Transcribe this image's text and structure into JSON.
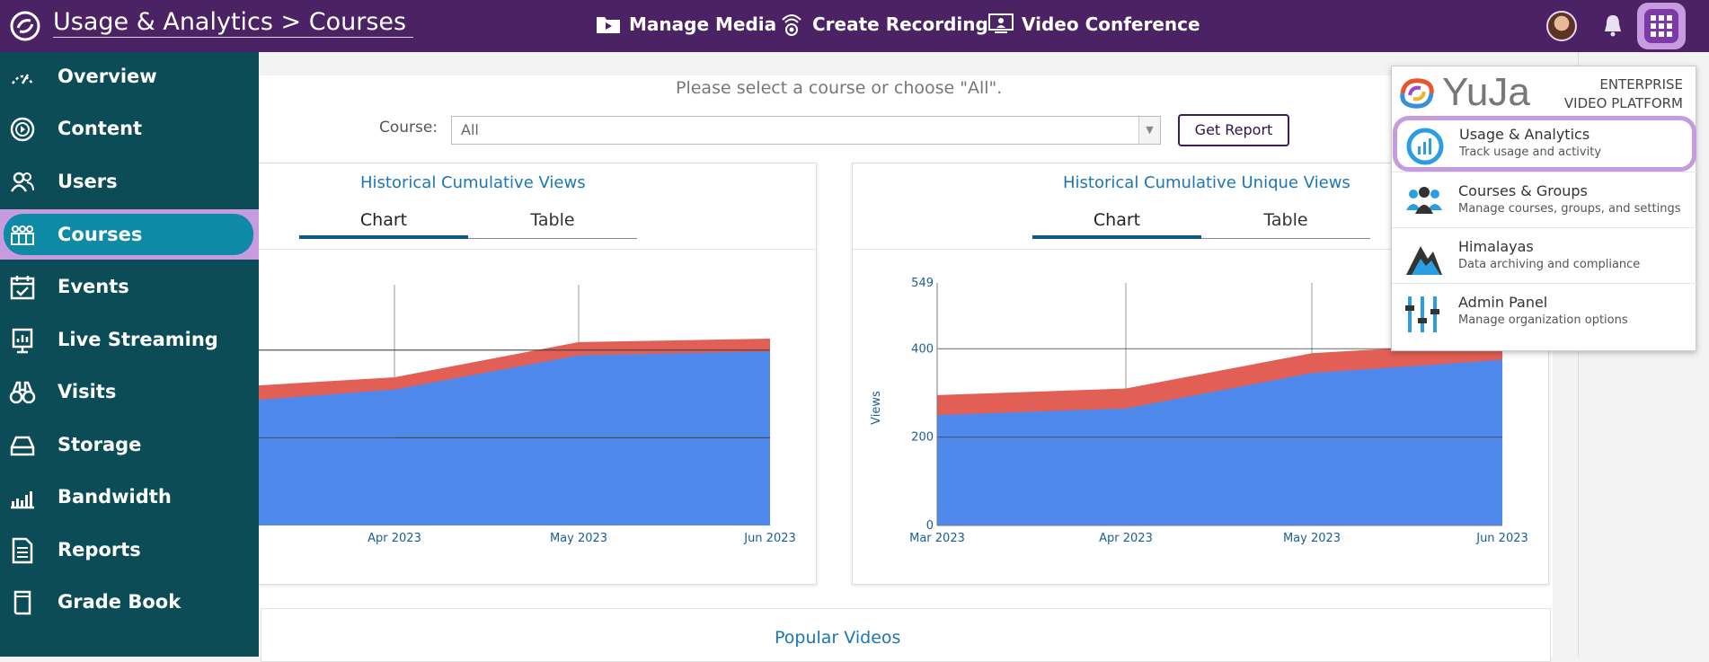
{
  "header": {
    "title": "Usage & Analytics > Courses",
    "nav": [
      {
        "label": "Manage Media",
        "icon": "media-folder-icon"
      },
      {
        "label": "Create Recording",
        "icon": "recording-icon"
      },
      {
        "label": "Video Conference",
        "icon": "video-conference-icon"
      }
    ]
  },
  "sidebar": {
    "items": [
      {
        "label": "Overview",
        "icon": "overview-icon"
      },
      {
        "label": "Content",
        "icon": "content-play-icon"
      },
      {
        "label": "Users",
        "icon": "users-icon"
      },
      {
        "label": "Courses",
        "icon": "courses-icon",
        "active": true
      },
      {
        "label": "Events",
        "icon": "calendar-check-icon"
      },
      {
        "label": "Live Streaming",
        "icon": "live-streaming-icon"
      },
      {
        "label": "Visits",
        "icon": "binoculars-icon"
      },
      {
        "label": "Storage",
        "icon": "storage-icon"
      },
      {
        "label": "Bandwidth",
        "icon": "bandwidth-icon"
      },
      {
        "label": "Reports",
        "icon": "report-icon"
      },
      {
        "label": "Grade Book",
        "icon": "grade-book-icon"
      }
    ]
  },
  "filters": {
    "prompt": "Please select a course or choose \"All\".",
    "course_label": "Course:",
    "course_value": "All",
    "get_report": "Get Report"
  },
  "cards": [
    {
      "title": "Historical Cumulative Views",
      "tabs": [
        "Chart",
        "Table"
      ],
      "selected_tab": "Chart"
    },
    {
      "title": "Historical Cumulative Unique Views",
      "tabs": [
        "Chart",
        "Table"
      ],
      "selected_tab": "Chart"
    }
  ],
  "popular": {
    "title": "Popular Videos"
  },
  "dropdown": {
    "brand": "YuJa",
    "tagline_line1": "ENTERPRISE",
    "tagline_line2": "VIDEO PLATFORM",
    "items": [
      {
        "title": "Usage & Analytics",
        "subtitle": "Track usage and activity",
        "icon": "analytics-icon",
        "active": true
      },
      {
        "title": "Courses & Groups",
        "subtitle": "Manage courses, groups, and settings",
        "icon": "groups-icon"
      },
      {
        "title": "Himalayas",
        "subtitle": "Data archiving and compliance",
        "icon": "mountain-icon"
      },
      {
        "title": "Admin Panel",
        "subtitle": "Manage organization options",
        "icon": "admin-sliders-icon"
      }
    ]
  },
  "colors": {
    "header": "#4b2263",
    "sidebar": "#0b4c57",
    "active": "#0f8aa6",
    "highlight": "#c79be0",
    "series_red": "#e15f55",
    "series_blue": "#4f89ec"
  },
  "chart_data": [
    {
      "type": "area",
      "title": "Historical Cumulative Views",
      "x": [
        "Apr 2023",
        "May 2023",
        "Jun 2023"
      ],
      "series": [
        {
          "values": [
            338,
            418,
            426
          ],
          "color": "#e15f55"
        },
        {
          "values": [
            310,
            388,
            397
          ],
          "color": "#4f89ec"
        }
      ]
    },
    {
      "type": "area",
      "title": "Historical Cumulative Unique Views",
      "ylabel": "Views",
      "ylim": [
        0,
        549
      ],
      "yticks": [
        0,
        200,
        400,
        549
      ],
      "x": [
        "Mar 2023",
        "Apr 2023",
        "May 2023",
        "Jun 2023"
      ],
      "series": [
        {
          "values": [
            295,
            310,
            390,
            415
          ],
          "color": "#e15f55"
        },
        {
          "values": [
            250,
            265,
            345,
            375
          ],
          "color": "#4f89ec"
        }
      ]
    }
  ]
}
